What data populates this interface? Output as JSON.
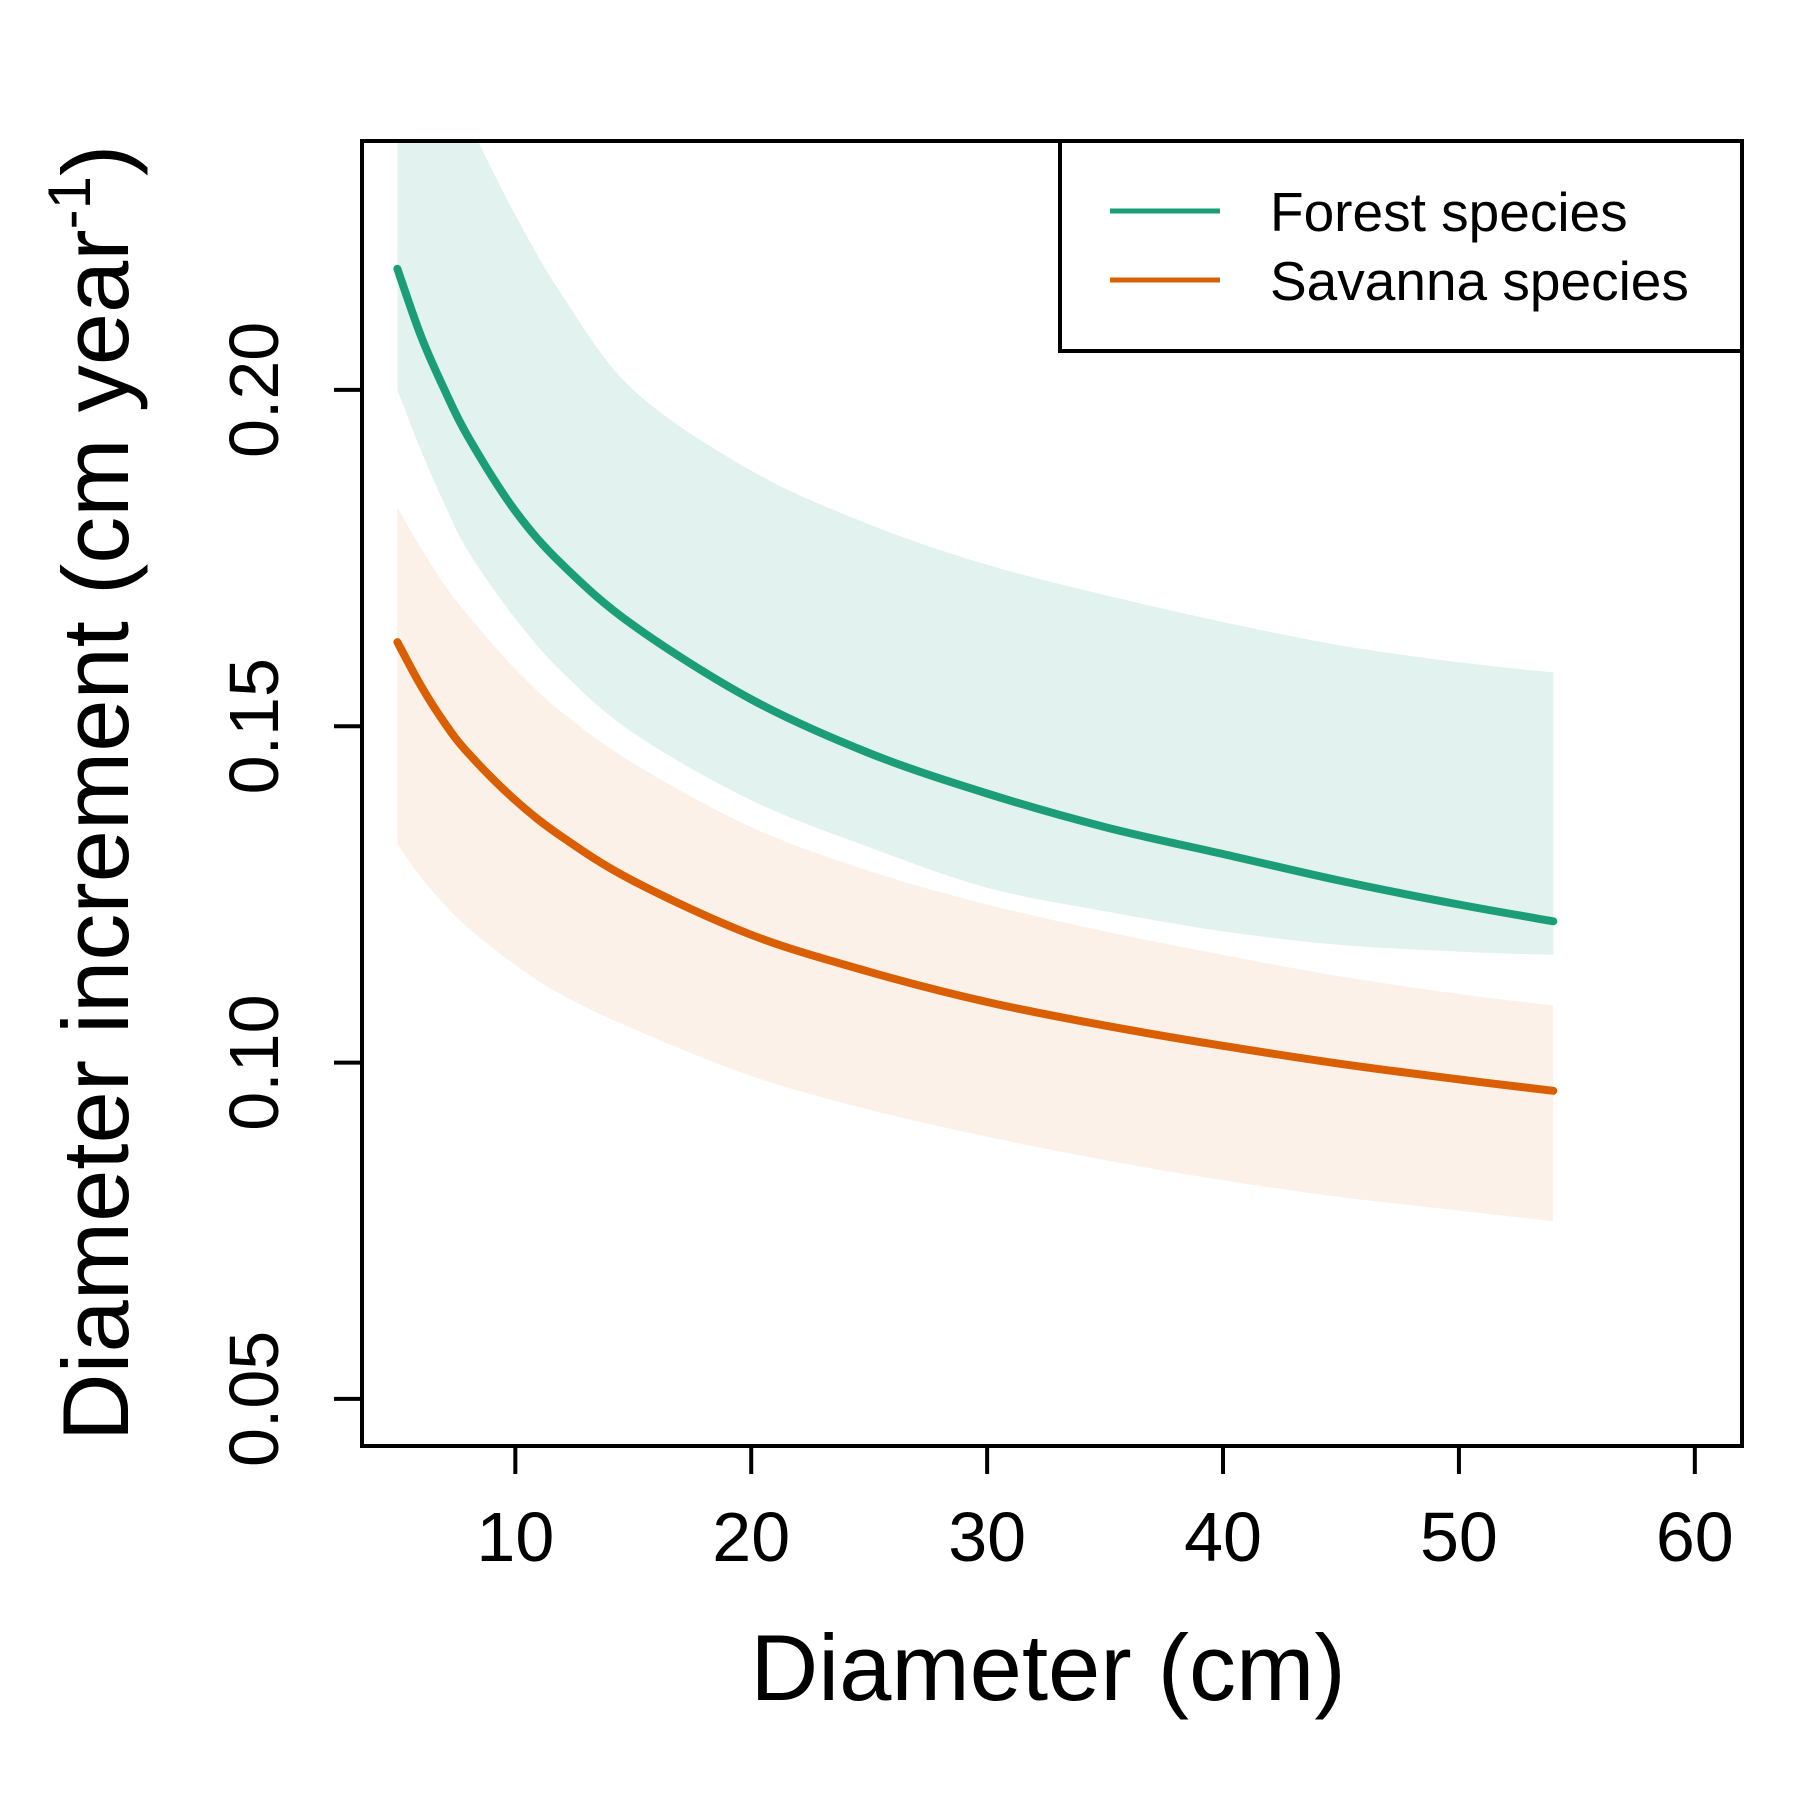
{
  "chart_data": {
    "type": "line",
    "xlabel": "Diameter (cm)",
    "ylabel": {
      "main": "Diameter increment (cm year",
      "superscript": "-1",
      "close": ")"
    },
    "xlim": [
      3.5,
      62
    ],
    "ylim": [
      0.043,
      0.237
    ],
    "xticks": [
      10,
      20,
      30,
      40,
      50,
      60
    ],
    "xtick_labels": [
      "10",
      "20",
      "30",
      "40",
      "50",
      "60"
    ],
    "yticks": [
      0.05,
      0.1,
      0.15,
      0.2
    ],
    "ytick_labels": [
      "0.05",
      "0.10",
      "0.15",
      "0.20"
    ],
    "grid": false,
    "legend": {
      "placement": "top-right",
      "entries": [
        {
          "label": "Forest species",
          "color": "#1b9e77"
        },
        {
          "label": "Savanna species",
          "color": "#d95f02"
        }
      ]
    },
    "series": [
      {
        "name": "Forest species",
        "color": "#1b9e77",
        "band_color": "#e2f2ee",
        "x": [
          5,
          6,
          7,
          8,
          10,
          12,
          15,
          20,
          25,
          30,
          35,
          40,
          45,
          50,
          54
        ],
        "y": [
          0.218,
          0.208,
          0.2,
          0.193,
          0.182,
          0.174,
          0.165,
          0.154,
          0.146,
          0.14,
          0.135,
          0.131,
          0.127,
          0.1235,
          0.121
        ],
        "lower": [
          0.2,
          0.191,
          0.183,
          0.176,
          0.166,
          0.158,
          0.149,
          0.139,
          0.132,
          0.126,
          0.1225,
          0.1195,
          0.1175,
          0.1165,
          0.116
        ],
        "upper": [
          0.265,
          0.257,
          0.248,
          0.24,
          0.226,
          0.214,
          0.2,
          0.188,
          0.18,
          0.174,
          0.1695,
          0.1655,
          0.162,
          0.1595,
          0.158
        ]
      },
      {
        "name": "Savanna species",
        "color": "#d95f02",
        "band_color": "#f9ebe1",
        "x": [
          5,
          6,
          7,
          8,
          10,
          12,
          15,
          20,
          25,
          30,
          35,
          40,
          45,
          50,
          54
        ],
        "y": [
          0.1625,
          0.156,
          0.1505,
          0.146,
          0.139,
          0.1335,
          0.127,
          0.119,
          0.1135,
          0.109,
          0.1055,
          0.1025,
          0.0998,
          0.0975,
          0.0958
        ],
        "lower": [
          0.1325,
          0.1275,
          0.1235,
          0.12,
          0.1145,
          0.11,
          0.105,
          0.098,
          0.093,
          0.089,
          0.0855,
          0.0825,
          0.08,
          0.078,
          0.0764
        ],
        "upper": [
          0.1825,
          0.1765,
          0.171,
          0.1665,
          0.1585,
          0.152,
          0.1445,
          0.135,
          0.1285,
          0.1235,
          0.1195,
          0.116,
          0.1128,
          0.1102,
          0.1085
        ]
      }
    ]
  }
}
